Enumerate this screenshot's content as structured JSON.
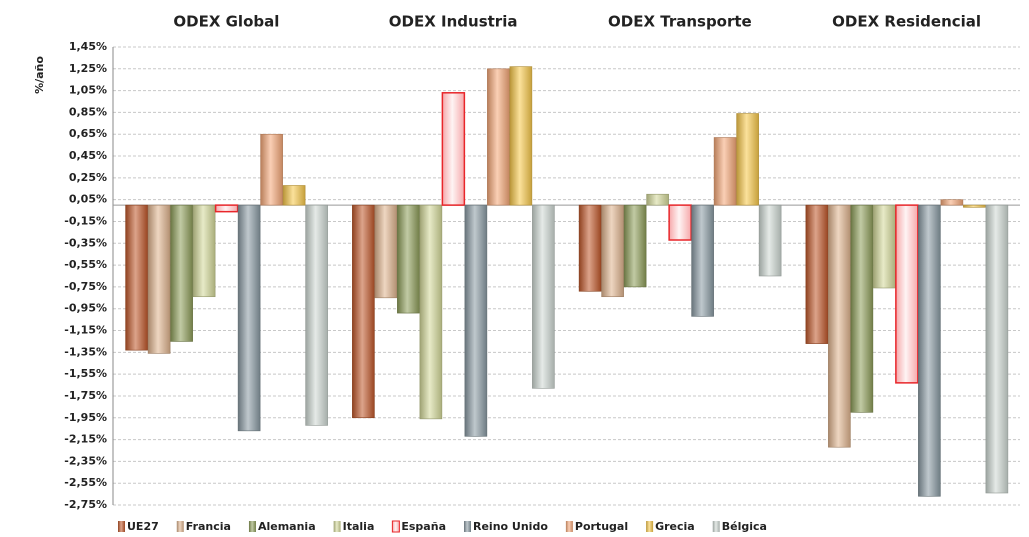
{
  "chart_data": {
    "type": "bar",
    "y_label": "%/año",
    "categories": [
      "ODEX Global",
      "ODEX Industria",
      "ODEX Transporte",
      "ODEX Residencial"
    ],
    "series": [
      {
        "name": "UE27",
        "color": "#c0582a",
        "values": [
          -1.33,
          -1.95,
          -0.79,
          -1.27
        ]
      },
      {
        "name": "Francia",
        "color": "#e0b48e",
        "values": [
          -1.36,
          -0.85,
          -0.84,
          -2.22
        ]
      },
      {
        "name": "Alemania",
        "color": "#8f9e5a",
        "values": [
          -1.25,
          -0.99,
          -0.75,
          -1.9
        ]
      },
      {
        "name": "Italia",
        "color": "#d4d99a",
        "values": [
          -0.84,
          -1.96,
          0.1,
          -0.76
        ]
      },
      {
        "name": "España",
        "color": "#e8262a",
        "values": [
          -0.06,
          1.03,
          -0.32,
          -1.63
        ]
      },
      {
        "name": "Reino Unido",
        "color": "#8a9ba4",
        "values": [
          -2.07,
          -2.12,
          -1.02,
          -2.67
        ]
      },
      {
        "name": "Portugal",
        "color": "#f5a878",
        "values": [
          0.65,
          1.25,
          0.62,
          0.05
        ]
      },
      {
        "name": "Grecia",
        "color": "#f8c84a",
        "values": [
          0.18,
          1.27,
          0.84,
          -0.02
        ]
      },
      {
        "name": "Bélgica",
        "color": "#cfd9d4",
        "values": [
          -2.02,
          -1.68,
          -0.65,
          -2.64
        ]
      }
    ],
    "ylim": [
      -2.75,
      1.45
    ],
    "yticks": [
      {
        "value": 1.45,
        "label": "1,45%"
      },
      {
        "value": 1.25,
        "label": "1,25%"
      },
      {
        "value": 1.05,
        "label": "1,05%"
      },
      {
        "value": 0.85,
        "label": "0,85%"
      },
      {
        "value": 0.65,
        "label": "0,65%"
      },
      {
        "value": 0.45,
        "label": "0,45%"
      },
      {
        "value": 0.25,
        "label": "0,25%"
      },
      {
        "value": 0.05,
        "label": "0,05%"
      },
      {
        "value": -0.15,
        "label": "-0,15%"
      },
      {
        "value": -0.35,
        "label": "-0,35%"
      },
      {
        "value": -0.55,
        "label": "-0,55%"
      },
      {
        "value": -0.75,
        "label": "-0,75%"
      },
      {
        "value": -0.95,
        "label": "-0,95%"
      },
      {
        "value": -1.15,
        "label": "-1,15%"
      },
      {
        "value": -1.35,
        "label": "-1,35%"
      },
      {
        "value": -1.55,
        "label": "-1,55%"
      },
      {
        "value": -1.75,
        "label": "-1,75%"
      },
      {
        "value": -1.95,
        "label": "-1,95%"
      },
      {
        "value": -2.15,
        "label": "-2,15%"
      },
      {
        "value": -2.35,
        "label": "-2,35%"
      },
      {
        "value": -2.55,
        "label": "-2,55%"
      },
      {
        "value": -2.75,
        "label": "-2,75%"
      }
    ],
    "grid": true
  }
}
